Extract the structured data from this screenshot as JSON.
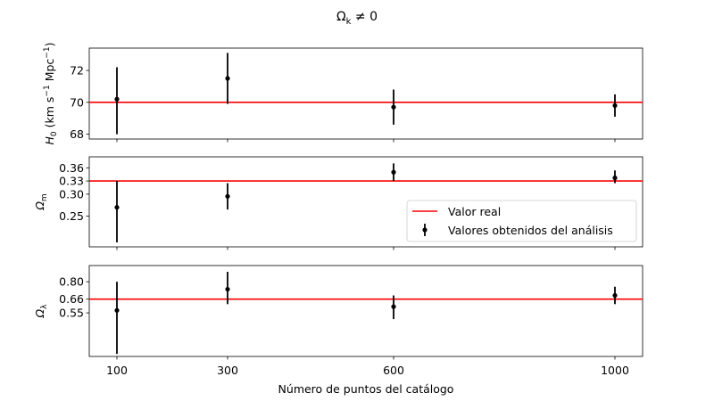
{
  "chart_data": {
    "type": "scatter",
    "title": "Ω_k ≠ 0",
    "title_main": "Ω",
    "title_sub": "k",
    "title_rest": " ≠ 0",
    "xlabel": "Número de puntos del catálogo",
    "x": [
      100,
      300,
      600,
      1000
    ],
    "xticks": [
      "100",
      "300",
      "600",
      "1000"
    ],
    "xlim": [
      50,
      1050
    ],
    "legend": {
      "placement": "right",
      "panel": 1,
      "entries": [
        "Valor real",
        "Valores obtenidos del análisis"
      ]
    },
    "colors": {
      "true_value": "#ff0000",
      "points": "#000000"
    },
    "panels": [
      {
        "ylabel_main": "H",
        "ylabel_sub": "0",
        "ylabel_units": "(km s",
        "ylabel_sup": "−1",
        "ylabel_units2": " Mpc",
        "ylabel_sup2": "−1",
        "ylabel_close": ")",
        "ylim": [
          67.7,
          73.4
        ],
        "yticks": [
          68,
          70,
          72
        ],
        "ytick_labels": [
          "68",
          "70",
          "72"
        ],
        "true_value": 70.0,
        "values": [
          70.2,
          71.5,
          69.7,
          69.8
        ],
        "errors_low": [
          2.2,
          1.6,
          1.1,
          0.7
        ],
        "errors_high": [
          2.0,
          1.6,
          1.1,
          0.7
        ]
      },
      {
        "ylabel_main": "Ω",
        "ylabel_sub": "m",
        "ylim": [
          0.18,
          0.385
        ],
        "yticks": [
          0.25,
          0.3,
          0.33,
          0.36
        ],
        "ytick_labels": [
          "0.25",
          "0.30",
          "0.33",
          "0.36"
        ],
        "true_value": 0.33,
        "values": [
          0.27,
          0.295,
          0.35,
          0.337
        ],
        "errors_low": [
          0.08,
          0.03,
          0.02,
          0.012
        ],
        "errors_high": [
          0.06,
          0.03,
          0.02,
          0.017
        ]
      },
      {
        "ylabel_main": "Ω",
        "ylabel_sub": "λ",
        "ylim": [
          0.2,
          0.93
        ],
        "yticks": [
          0.55,
          0.66,
          0.8
        ],
        "ytick_labels": [
          "0.55",
          "0.66",
          "0.80"
        ],
        "true_value": 0.66,
        "values": [
          0.57,
          0.74,
          0.6,
          0.69
        ],
        "errors_low": [
          0.35,
          0.12,
          0.1,
          0.07
        ],
        "errors_high": [
          0.23,
          0.14,
          0.09,
          0.07
        ]
      }
    ]
  }
}
